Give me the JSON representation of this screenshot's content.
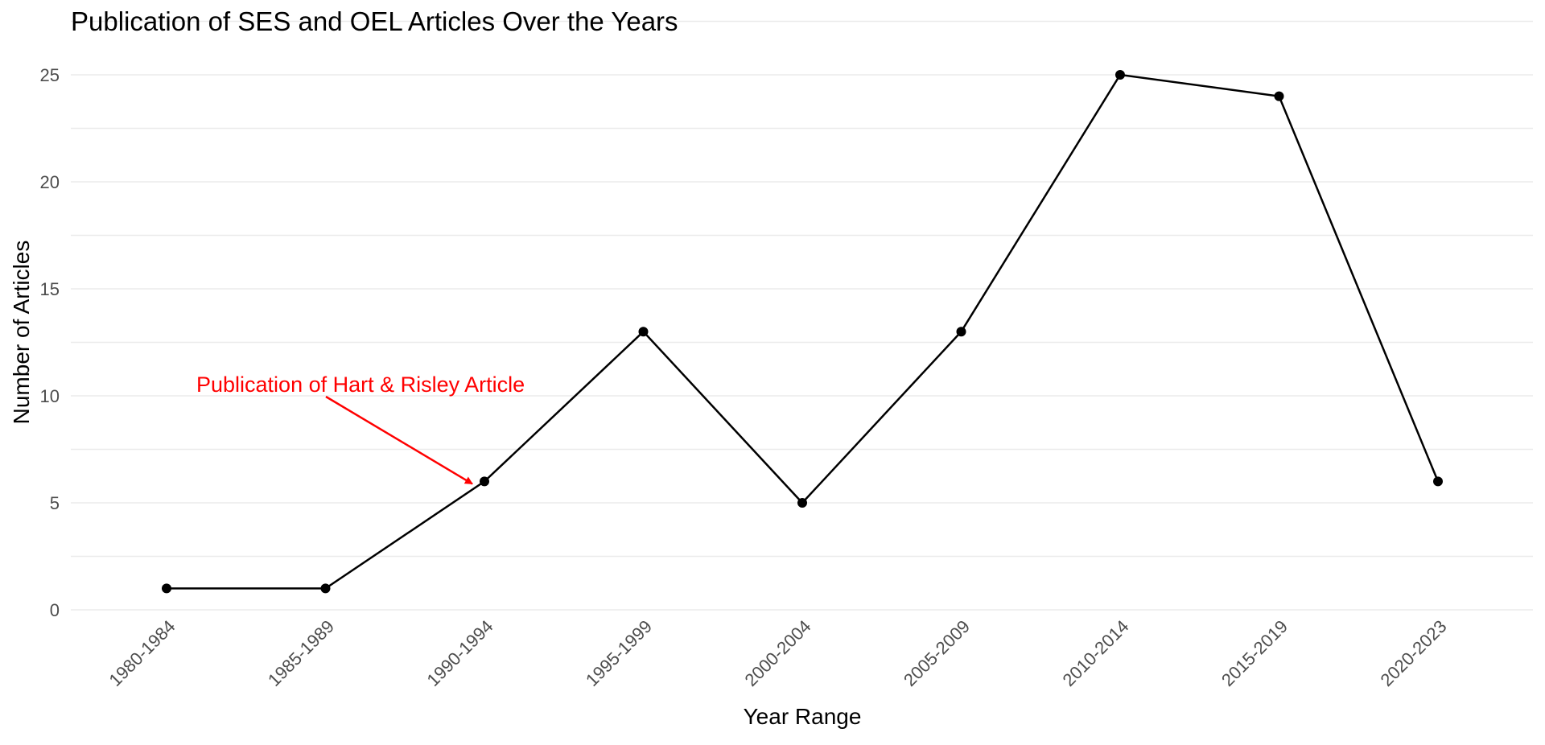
{
  "chart_data": {
    "type": "line",
    "title": "Publication of SES and OEL Articles Over the Years",
    "xlabel": "Year Range",
    "ylabel": "Number of Articles",
    "categories": [
      "1980-1984",
      "1985-1989",
      "1990-1994",
      "1995-1999",
      "2000-2004",
      "2005-2009",
      "2010-2014",
      "2015-2019",
      "2020-2023"
    ],
    "values": [
      1,
      1,
      6,
      13,
      5,
      13,
      25,
      24,
      6
    ],
    "ylim": [
      0,
      25
    ],
    "yticks": [
      "0",
      "5",
      "10",
      "15",
      "20",
      "25"
    ],
    "grid": true,
    "legend": "none",
    "series_color": "#000000",
    "annotation": {
      "text": "Publication of Hart & Risley Article",
      "target_category": "1990-1994",
      "target_value": 6,
      "color": "#ff0000"
    }
  }
}
